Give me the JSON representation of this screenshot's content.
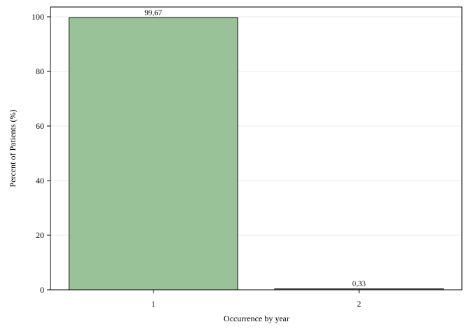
{
  "chart_data": {
    "type": "bar",
    "x_label": "Occurrence by year",
    "y_label": "Percent of Patients (%)",
    "categories": [
      "1",
      "2"
    ],
    "values": [
      99.67,
      0.33
    ],
    "value_labels": [
      "99,67",
      "0,33"
    ],
    "color": "#99c299",
    "ylim": [
      0,
      103.6
    ],
    "yticks": [
      0,
      20,
      40,
      60,
      80,
      100
    ],
    "grid": true
  }
}
